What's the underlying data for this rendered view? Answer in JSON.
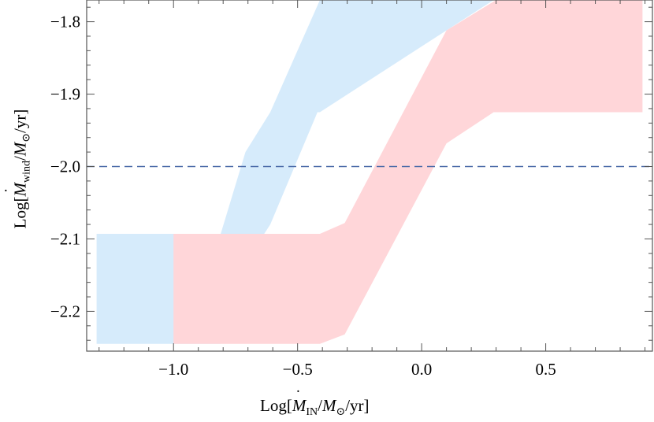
{
  "chart_data": {
    "type": "area",
    "xlabel": "Log[Ṁ_IN/M_⊙/yr]",
    "ylabel": "Log[Ṁ_wind/M_⊙/yr]",
    "xlim": [
      -1.35,
      0.93
    ],
    "ylim": [
      -2.255,
      -1.77
    ],
    "x_ticks": [
      -1.0,
      -0.5,
      0.0,
      0.5
    ],
    "x_tick_labels": [
      "−1.0",
      "−0.5",
      "0.0",
      "0.5"
    ],
    "y_ticks": [
      -2.2,
      -2.1,
      -2.0,
      -1.9,
      -1.8
    ],
    "y_tick_labels": [
      "−2.2",
      "−2.1",
      "−2.0",
      "−1.9",
      "−1.8"
    ],
    "grid": false,
    "reference_line": {
      "y": -2.0,
      "style": "dashed",
      "color": "#4a6aa8"
    },
    "series": [
      {
        "color": "#d6ebfb",
        "polygon": [
          [
            -1.31,
            -2.093
          ],
          [
            -0.81,
            -2.093
          ],
          [
            -0.71,
            -1.98
          ],
          [
            -0.61,
            -1.925
          ],
          [
            -0.41,
            -1.77
          ],
          [
            0.29,
            -1.77
          ],
          [
            0.1,
            -1.812
          ],
          [
            -0.41,
            -1.925
          ],
          [
            -0.42,
            -1.925
          ],
          [
            -0.61,
            -2.08
          ],
          [
            -0.71,
            -2.133
          ],
          [
            -0.81,
            -2.245
          ],
          [
            -1.31,
            -2.245
          ]
        ]
      },
      {
        "color": "#ffd6d9",
        "polygon": [
          [
            -1.0,
            -2.093
          ],
          [
            -0.41,
            -2.093
          ],
          [
            -0.31,
            -2.078
          ],
          [
            0.1,
            -1.812
          ],
          [
            0.3,
            -1.77
          ],
          [
            0.89,
            -1.77
          ],
          [
            0.89,
            -1.925
          ],
          [
            0.29,
            -1.925
          ],
          [
            0.1,
            -1.968
          ],
          [
            -0.31,
            -2.232
          ],
          [
            -0.41,
            -2.245
          ],
          [
            -1.0,
            -2.245
          ]
        ]
      }
    ]
  },
  "labels": {
    "y_prefix": "Log[",
    "y_m": "M",
    "y_sub": "wind",
    "y_mid": "/",
    "y_m2": "M",
    "y_sun": "⊙",
    "y_suffix": "/yr]",
    "x_prefix": "Log[",
    "x_m": "M",
    "x_sub": "IN",
    "x_mid": "/",
    "x_m2": "M",
    "x_sun": "⊙",
    "x_suffix": "/yr]"
  }
}
